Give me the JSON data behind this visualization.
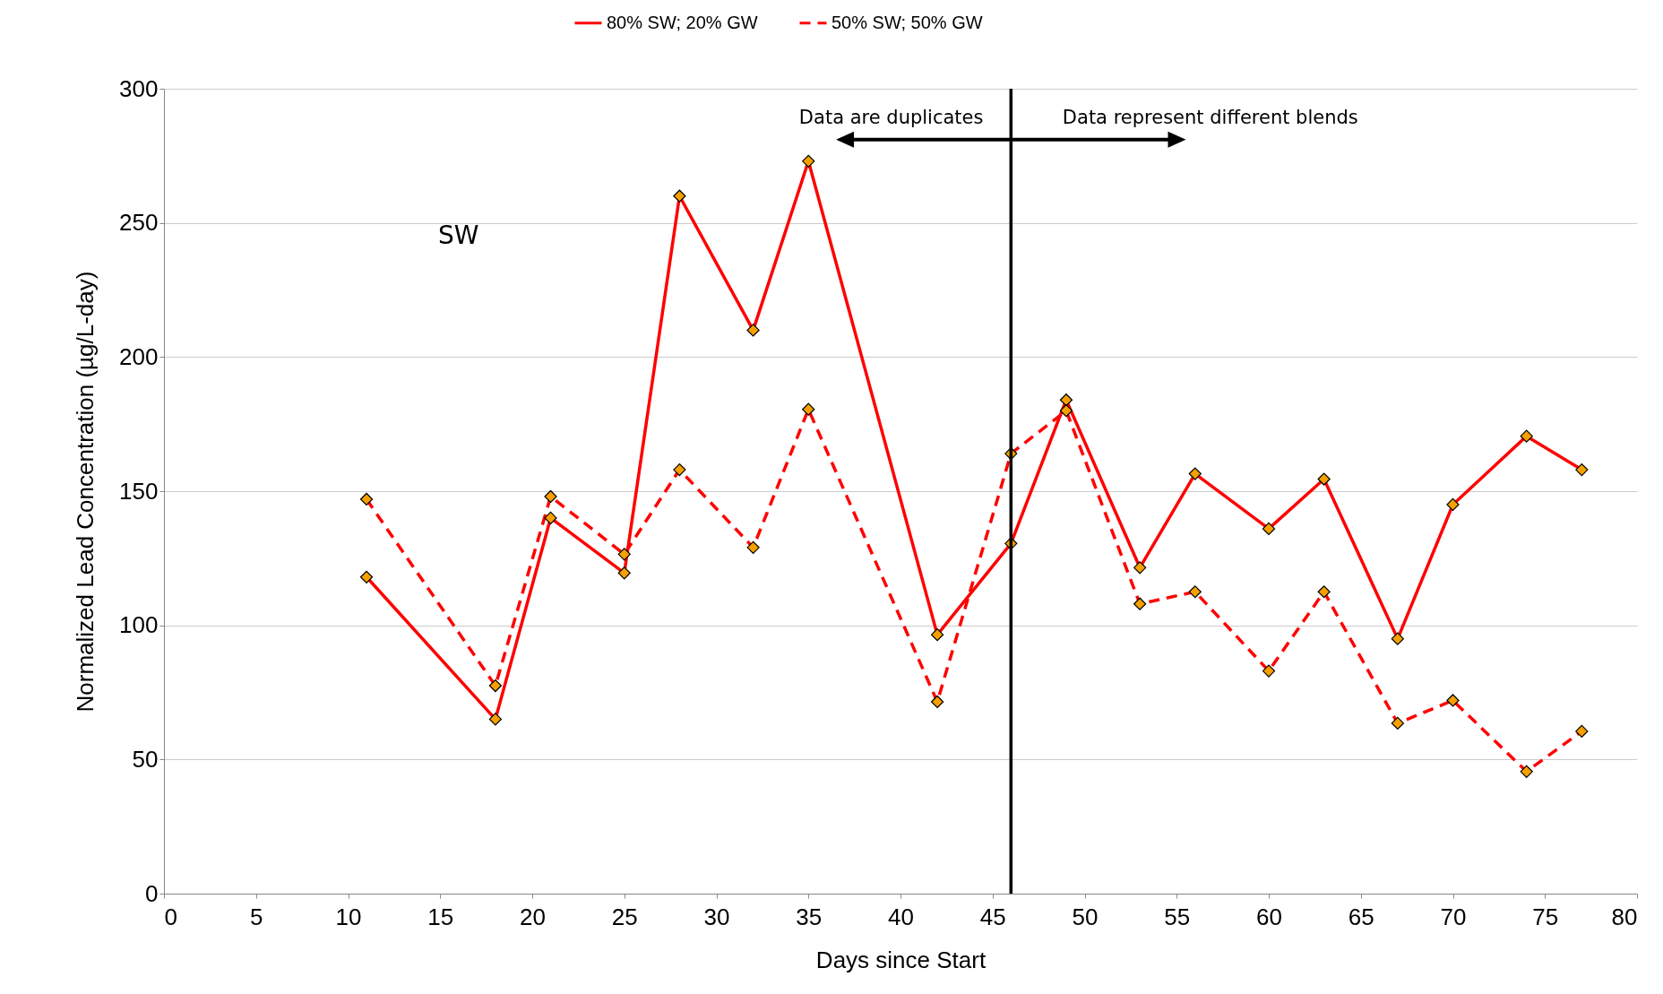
{
  "chart_data": {
    "type": "line",
    "xlabel": "Days since Start",
    "ylabel": "Normalized Lead Concentration (µg/L-day)",
    "x": [
      11,
      18,
      21,
      25,
      28,
      32,
      35,
      42,
      46,
      49,
      53,
      56,
      60,
      63,
      67,
      70,
      74,
      77
    ],
    "series": [
      {
        "name": "80% SW; 20% GW",
        "color": "#ff0000",
        "line_style": "solid",
        "values": [
          118,
          65,
          140,
          119.5,
          260,
          210,
          273,
          96.5,
          130.5,
          184,
          121.5,
          156.5,
          136,
          154.5,
          95,
          145,
          170.5,
          158
        ]
      },
      {
        "name": "50% SW; 50% GW",
        "color": "#ff0000",
        "line_style": "dashed",
        "values": [
          147,
          77.5,
          148,
          126.5,
          158,
          129,
          180.5,
          71.5,
          164,
          180,
          108,
          112.5,
          83,
          112.5,
          63.5,
          72,
          45.5,
          60.5
        ]
      }
    ],
    "xlim": [
      0,
      80
    ],
    "xticks": [
      0,
      5,
      10,
      15,
      20,
      25,
      30,
      35,
      40,
      45,
      50,
      55,
      60,
      65,
      70,
      75,
      80
    ],
    "ylim": [
      0,
      300
    ],
    "yticks": [
      0,
      50,
      100,
      150,
      200,
      250,
      300
    ],
    "grid": "y",
    "legend": "top",
    "marker": "diamond",
    "ref_lines": [
      {
        "axis": "x",
        "value": 46,
        "color": "#000000"
      }
    ],
    "annotations": [
      {
        "text": "Data are duplicates",
        "x": 46,
        "y": 281
      },
      {
        "text": "Data represent different blends",
        "x": 46,
        "y": 281
      },
      "SW"
    ]
  }
}
